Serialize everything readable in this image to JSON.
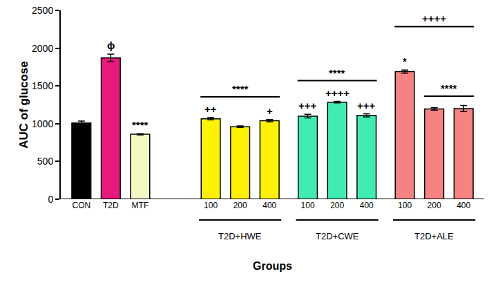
{
  "chart_data": {
    "type": "bar",
    "x_label": "Groups",
    "y_label": "AUC of glucose",
    "ylim": [
      0,
      2500
    ],
    "yticks": [
      0,
      500,
      1000,
      1500,
      2000,
      2500
    ],
    "grid": false,
    "groups": [
      {
        "label": null,
        "categories": [
          "CON",
          "T2D",
          "MTF"
        ],
        "values": [
          1010,
          1870,
          860
        ],
        "errors": [
          25,
          50,
          8
        ],
        "colors": [
          "#000000",
          "#e8197d",
          "#f4f7c2"
        ],
        "marks": [
          null,
          "ϕ",
          "****"
        ],
        "brackets": []
      },
      {
        "label": "T2D+HWE",
        "categories": [
          "100",
          "200",
          "400"
        ],
        "values": [
          1065,
          960,
          1040
        ],
        "errors": [
          15,
          10,
          15
        ],
        "colors": [
          "#fff200",
          "#fff200",
          "#fff200"
        ],
        "marks": [
          "++",
          null,
          "+"
        ],
        "brackets": [
          {
            "text": "****",
            "span": [
              "100",
              "400"
            ]
          }
        ]
      },
      {
        "label": "T2D+CWE",
        "categories": [
          "100",
          "200",
          "400"
        ],
        "values": [
          1100,
          1285,
          1110
        ],
        "errors": [
          25,
          10,
          20
        ],
        "colors": [
          "#40ecb1",
          "#40ecb1",
          "#40ecb1"
        ],
        "marks": [
          "+++",
          "++++",
          "+++"
        ],
        "brackets": [
          {
            "text": "****",
            "span": [
              "100",
              "400"
            ]
          }
        ]
      },
      {
        "label": "T2D+ALE",
        "categories": [
          "100",
          "200",
          "400"
        ],
        "values": [
          1690,
          1195,
          1200
        ],
        "errors": [
          20,
          15,
          40
        ],
        "colors": [
          "#f78282",
          "#f78282",
          "#f78282"
        ],
        "marks": [
          "*",
          null,
          null
        ],
        "brackets": [
          {
            "text": "****",
            "span": [
              "200",
              "400"
            ]
          },
          {
            "text": "++++",
            "span": [
              "100",
              "400"
            ]
          }
        ]
      }
    ]
  }
}
